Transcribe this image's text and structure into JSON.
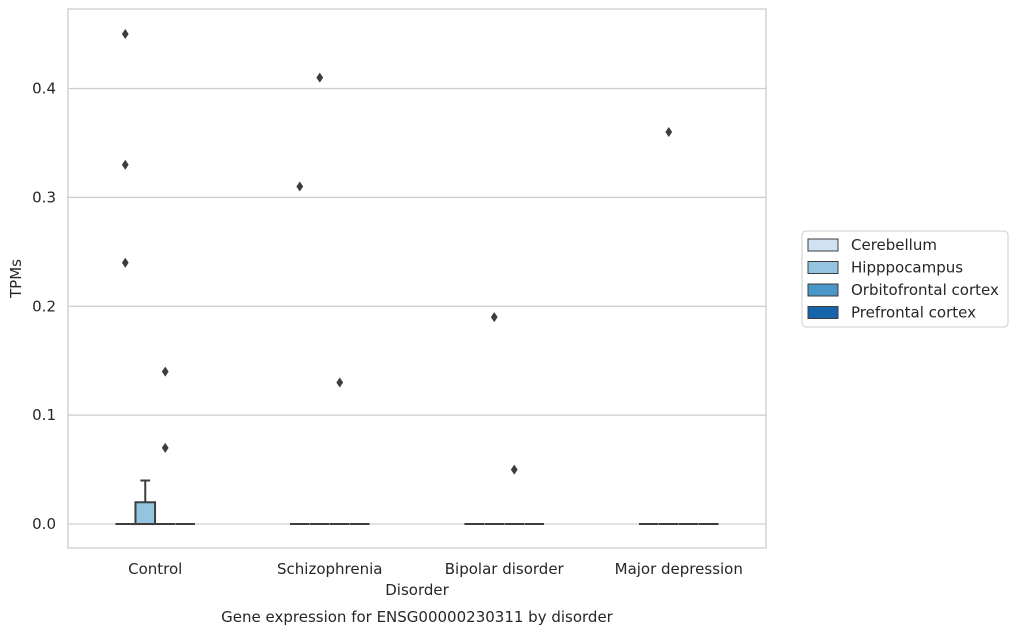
{
  "chart_data": {
    "type": "box",
    "title": "",
    "caption": "Gene expression for ENSG00000230311 by disorder",
    "xlabel": "Disorder",
    "ylabel": "TPMs",
    "ylim": [
      -0.022,
      0.473
    ],
    "yticks": [
      0.0,
      0.1,
      0.2,
      0.3,
      0.4
    ],
    "ytick_labels": [
      "0.0",
      "0.1",
      "0.2",
      "0.3",
      "0.4"
    ],
    "grid": "horizontal",
    "legend_position": "right",
    "categories": [
      "Control",
      "Schizophrenia",
      "Bipolar disorder",
      "Major depression"
    ],
    "series": [
      {
        "name": "Cerebellum",
        "color": "#d0e1f2",
        "boxes": [
          {
            "q1": 0,
            "median": 0,
            "q3": 0,
            "whislo": 0,
            "whishi": 0,
            "fliers": [
              0.45,
              0.33,
              0.24
            ]
          },
          {
            "q1": 0,
            "median": 0,
            "q3": 0,
            "whislo": 0,
            "whishi": 0,
            "fliers": [
              0.31
            ]
          },
          {
            "q1": 0,
            "median": 0,
            "q3": 0,
            "whislo": 0,
            "whishi": 0,
            "fliers": []
          },
          {
            "q1": 0,
            "median": 0,
            "q3": 0,
            "whislo": 0,
            "whishi": 0,
            "fliers": []
          }
        ]
      },
      {
        "name": "Hipppocampus",
        "color": "#94c4df",
        "boxes": [
          {
            "q1": 0,
            "median": 0,
            "q3": 0.02,
            "whislo": 0,
            "whishi": 0.04,
            "fliers": []
          },
          {
            "q1": 0,
            "median": 0,
            "q3": 0,
            "whislo": 0,
            "whishi": 0,
            "fliers": [
              0.41
            ]
          },
          {
            "q1": 0,
            "median": 0,
            "q3": 0,
            "whislo": 0,
            "whishi": 0,
            "fliers": [
              0.19
            ]
          },
          {
            "q1": 0,
            "median": 0,
            "q3": 0,
            "whislo": 0,
            "whishi": 0,
            "fliers": [
              0.36
            ]
          }
        ]
      },
      {
        "name": "Orbitofrontal cortex",
        "color": "#4a98c9",
        "boxes": [
          {
            "q1": 0,
            "median": 0,
            "q3": 0,
            "whislo": 0,
            "whishi": 0,
            "fliers": [
              0.14,
              0.07
            ]
          },
          {
            "q1": 0,
            "median": 0,
            "q3": 0,
            "whislo": 0,
            "whishi": 0,
            "fliers": [
              0.13
            ]
          },
          {
            "q1": 0,
            "median": 0,
            "q3": 0,
            "whislo": 0,
            "whishi": 0,
            "fliers": [
              0.05
            ]
          },
          {
            "q1": 0,
            "median": 0,
            "q3": 0,
            "whislo": 0,
            "whishi": 0,
            "fliers": []
          }
        ]
      },
      {
        "name": "Prefrontal cortex",
        "color": "#1764ab",
        "boxes": [
          {
            "q1": 0,
            "median": 0,
            "q3": 0,
            "whislo": 0,
            "whishi": 0,
            "fliers": []
          },
          {
            "q1": 0,
            "median": 0,
            "q3": 0,
            "whislo": 0,
            "whishi": 0,
            "fliers": []
          },
          {
            "q1": 0,
            "median": 0,
            "q3": 0,
            "whislo": 0,
            "whishi": 0,
            "fliers": []
          },
          {
            "q1": 0,
            "median": 0,
            "q3": 0,
            "whislo": 0,
            "whishi": 0,
            "fliers": []
          }
        ]
      }
    ]
  }
}
